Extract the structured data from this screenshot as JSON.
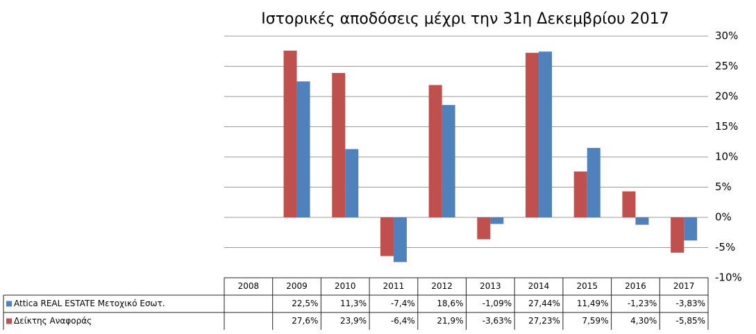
{
  "chart_data": {
    "type": "bar",
    "title": "Ιστορικές αποδόσεις μέχρι την 31η Δεκεμβρίου 2017",
    "categories": [
      "2008",
      "2009",
      "2010",
      "2011",
      "2012",
      "2013",
      "2014",
      "2015",
      "2016",
      "2017"
    ],
    "series": [
      {
        "name": "Attica REAL  ESTATE Μετοχικό Εσωτ.",
        "color": "#4f81bd",
        "values": [
          null,
          22.5,
          11.3,
          -7.4,
          18.6,
          -1.09,
          27.44,
          11.49,
          -1.23,
          -3.83
        ],
        "value_labels": [
          null,
          "22,5%",
          "11,3%",
          "-7,4%",
          "18,6%",
          "-1,09%",
          "27,44%",
          "11,49%",
          "-1,23%",
          "-3,83%"
        ]
      },
      {
        "name": "Δείκτης Αναφοράς",
        "color": "#c0504d",
        "values": [
          null,
          27.6,
          23.9,
          -6.4,
          21.9,
          -3.63,
          27.23,
          7.59,
          4.3,
          -5.85
        ],
        "value_labels": [
          null,
          "27,6%",
          "23,9%",
          "-6,4%",
          "21,9%",
          "-3,63%",
          "27,23%",
          "7,59%",
          "4,30%",
          "-5,85%"
        ]
      }
    ],
    "ylim": [
      -10,
      30
    ],
    "yticks": [
      {
        "value": -10,
        "label": "-10%"
      },
      {
        "value": -5,
        "label": "-5%"
      },
      {
        "value": 0,
        "label": "0%"
      },
      {
        "value": 5,
        "label": "5%"
      },
      {
        "value": 10,
        "label": "10%"
      },
      {
        "value": 15,
        "label": "15%"
      },
      {
        "value": 20,
        "label": "20%"
      },
      {
        "value": 25,
        "label": "25%"
      },
      {
        "value": 30,
        "label": "30%"
      }
    ],
    "y_axis_side": "right",
    "grid": true
  }
}
